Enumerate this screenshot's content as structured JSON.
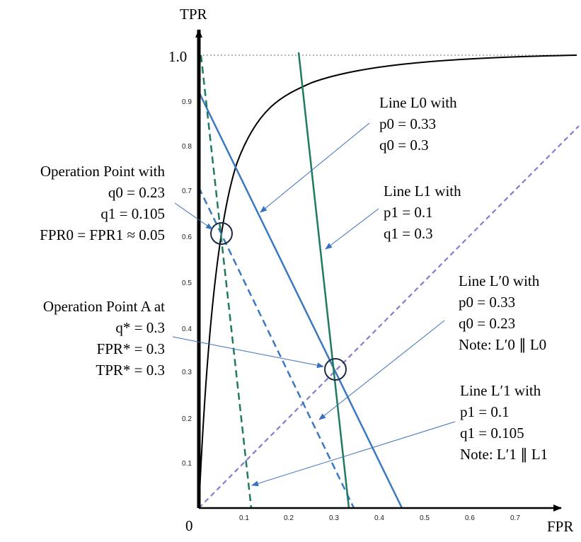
{
  "axes": {
    "x_label": "FPR",
    "y_label": "TPR",
    "origin_label": "0",
    "y_top_label": "1.0",
    "x_ticks": [
      "0.1",
      "0.2",
      "0.3",
      "0.4",
      "0.5",
      "0.6",
      "0.7"
    ],
    "y_ticks": [
      "0.1",
      "0.2",
      "0.3",
      "0.4",
      "0.5",
      "0.6",
      "0.7",
      "0.8",
      "0.9"
    ]
  },
  "colors": {
    "roc_curve": "#000000",
    "line_L0": "#3a78c3",
    "line_L1": "#1f7a62",
    "diagonal": "#8a78d8",
    "top_dotted": "#b5b5b5",
    "arrow": "#3a6fbf",
    "marker_circle": "#1a2a44"
  },
  "annotations": {
    "operation_point": {
      "l1": "Operation Point with",
      "l2": "q0 = 0.23",
      "l3": "q1 = 0.105",
      "l4": "FPR0 = FPR1 ≈ 0.05"
    },
    "operation_point_a": {
      "l1": "Operation Point A at",
      "l2": "q* = 0.3",
      "l3": "FPR* = 0.3",
      "l4": "TPR* = 0.3"
    },
    "line_L0": {
      "l1": "Line L0 with",
      "l2": "p0 = 0.33",
      "l3": "q0 = 0.3"
    },
    "line_L1": {
      "l1": "Line L1 with",
      "l2": "p1 = 0.1",
      "l3": "q1 = 0.3"
    },
    "line_L0_prime": {
      "l1": "Line L′0 with",
      "l2": "p0 = 0.33",
      "l3": "q0 = 0.23",
      "l4": "Note: L′0 ∥ L0"
    },
    "line_L1_prime": {
      "l1": "Line L′1 with",
      "l2": "p1 = 0.1",
      "l3": "q1 = 0.105",
      "l4": "Note: L′1 ∥ L1"
    }
  },
  "chart_data": {
    "type": "line",
    "xlabel": "FPR",
    "ylabel": "TPR",
    "xlim": [
      0,
      0.8
    ],
    "ylim": [
      0,
      1.0
    ],
    "series": [
      {
        "style": "solid",
        "color": "#3a78c3",
        "x": [
          0.0,
          0.45
        ],
        "y": [
          0.92,
          0.0
        ]
      },
      {
        "style": "dashed",
        "color": "#3a78c3",
        "x": [
          0.0,
          0.34
        ],
        "y": [
          0.7,
          0.0
        ]
      },
      {
        "style": "solid",
        "color": "#1f7a62",
        "x": [
          0.22,
          0.33
        ],
        "y": [
          1.0,
          0.0
        ]
      },
      {
        "style": "dashed",
        "color": "#1f7a62",
        "x": [
          0.01,
          0.12
        ],
        "y": [
          1.0,
          0.0
        ]
      },
      {
        "style": "dashed",
        "color": "#8a78d8",
        "x": [
          0.0,
          0.85
        ],
        "y": [
          0.0,
          0.85
        ]
      }
    ],
    "points": [
      {
        "x": 0.05,
        "y": 0.6
      },
      {
        "x": 0.3,
        "y": 0.3
      }
    ]
  }
}
